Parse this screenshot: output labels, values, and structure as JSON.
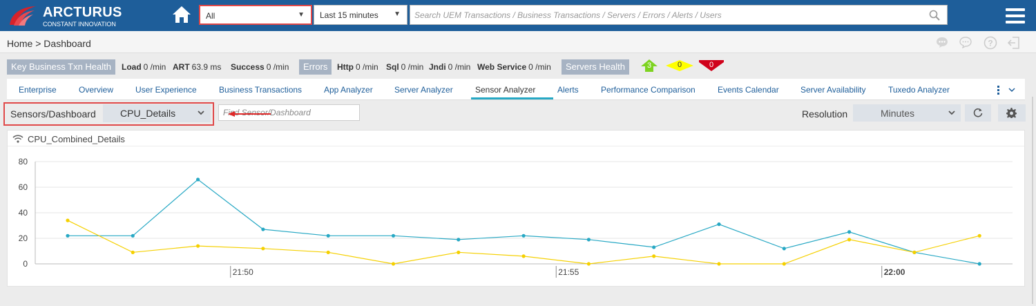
{
  "header": {
    "logo_title": "ARCTURUS",
    "logo_subtitle": "CONSTANT INNOVATION",
    "app_select": "All",
    "time_select": "Last 15 minutes",
    "search_placeholder": "Search UEM Transactions / Business Transactions / Servers / Errors / Alerts / Users"
  },
  "breadcrumb": "Home > Dashboard",
  "health": {
    "key_label": "Key Business Txn Health",
    "load_label": "Load",
    "load_value": "0 /min",
    "art_label": "ART",
    "art_value": "63.9 ms",
    "success_label": "Success",
    "success_value": "0 /min",
    "errors_label": "Errors",
    "http_label": "Http",
    "http_value": "0 /min",
    "sql_label": "Sql",
    "sql_value": "0 /min",
    "jndi_label": "Jndi",
    "jndi_value": "0 /min",
    "ws_label": "Web Service",
    "ws_value": "0 /min",
    "servers_label": "Servers Health",
    "servers_up": "3",
    "servers_warn": "0",
    "servers_down": "0",
    "colors": {
      "up": "#7ed321",
      "warn": "#ffff00",
      "down": "#d0021b",
      "chip": "#a7b3c3"
    }
  },
  "tabs": [
    "Enterprise",
    "Overview",
    "User Experience",
    "Business Transactions",
    "App Analyzer",
    "Server Analyzer",
    "Sensor Analyzer",
    "Alerts",
    "Performance Comparison",
    "Events Calendar",
    "Server Availability",
    "Tuxedo Analyzer"
  ],
  "active_tab": "Sensor Analyzer",
  "sensor": {
    "label": "Sensors/Dashboard",
    "selected": "CPU_Details",
    "find_placeholder": "Find Sensor/Dashboard",
    "resolution_label": "Resolution",
    "resolution_value": "Minutes"
  },
  "panel_title": "CPU_Combined_Details",
  "chart_data": {
    "type": "line",
    "ylim": [
      0,
      80
    ],
    "yticks": [
      "80",
      "60",
      "40",
      "20",
      "0"
    ],
    "x": [
      "21:47",
      "21:48",
      "21:49",
      "21:50",
      "21:51",
      "21:52",
      "21:53",
      "21:54",
      "21:55",
      "21:56",
      "21:57",
      "21:58",
      "21:59",
      "22:00",
      "22:01"
    ],
    "xticks": [
      {
        "label": "21:50",
        "at": 2.5,
        "bold": false
      },
      {
        "label": "21:55",
        "at": 7.5,
        "bold": false
      },
      {
        "label": "22:00",
        "at": 12.5,
        "bold": true
      }
    ],
    "series": [
      {
        "color": "#27a8c4",
        "values": [
          22,
          22,
          66,
          27,
          22,
          22,
          19,
          22,
          19,
          13,
          31,
          12,
          25,
          9,
          0
        ]
      },
      {
        "color": "#f5d000",
        "values": [
          34,
          9,
          14,
          12,
          9,
          0,
          9,
          6,
          0,
          6,
          0,
          0,
          19,
          9,
          22
        ]
      }
    ],
    "grid": true
  }
}
